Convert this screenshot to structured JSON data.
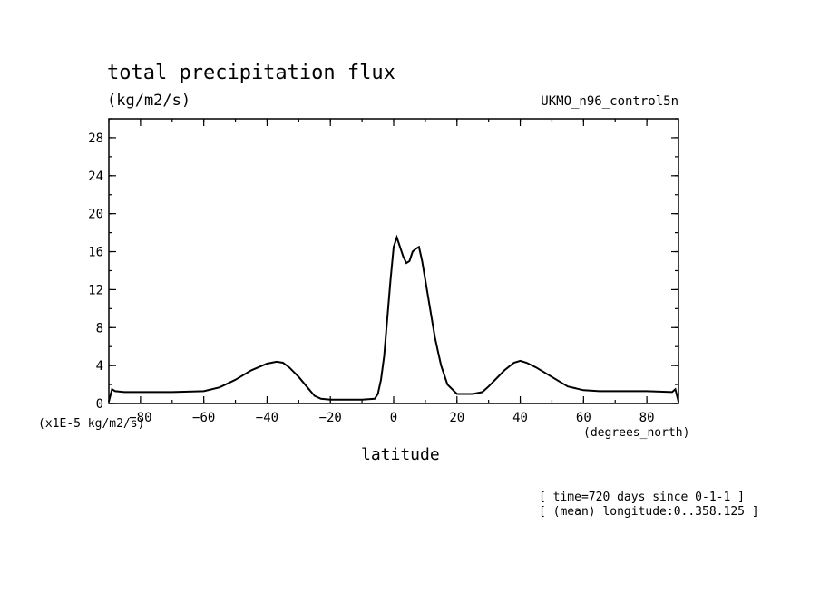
{
  "chart_data": {
    "type": "line",
    "title": "total precipitation flux",
    "units_label": "(kg/m2/s)",
    "dataset_label": "UKMO_n96_control5n",
    "xlabel": "latitude",
    "x_units_label": "(degrees_north)",
    "y_scale_label": "(x1E-5 kg/m2/s)",
    "annotations": [
      "[ time=720 days since 0-1-1 ]",
      "[ (mean) longitude:0..358.125 ]"
    ],
    "xlim": [
      -90,
      90
    ],
    "ylim": [
      0,
      30
    ],
    "xticks": [
      -80,
      -60,
      -40,
      -20,
      0,
      20,
      40,
      60,
      80
    ],
    "yticks": [
      0,
      4,
      8,
      12,
      16,
      20,
      24,
      28
    ],
    "grid": false,
    "series": [
      {
        "x": [
          -90,
          -89,
          -88,
          -85,
          -80,
          -70,
          -60,
          -55,
          -50,
          -45,
          -40,
          -37,
          -35,
          -33,
          -30,
          -27,
          -25,
          -23,
          -20,
          -15,
          -10,
          -6,
          -5,
          -4,
          -3,
          -2,
          -1,
          0,
          1,
          2,
          3,
          4,
          5,
          6,
          7,
          8,
          9,
          10,
          11,
          12,
          13,
          14,
          15,
          17,
          20,
          25,
          28,
          30,
          35,
          38,
          40,
          42,
          45,
          50,
          55,
          60,
          65,
          70,
          80,
          88,
          89,
          90
        ],
        "y": [
          0.2,
          1.5,
          1.3,
          1.2,
          1.2,
          1.2,
          1.3,
          1.7,
          2.5,
          3.5,
          4.2,
          4.4,
          4.3,
          3.8,
          2.8,
          1.6,
          0.8,
          0.5,
          0.4,
          0.4,
          0.4,
          0.5,
          1.0,
          2.5,
          5.0,
          9.0,
          13.0,
          16.5,
          17.5,
          16.5,
          15.5,
          14.8,
          15.0,
          16.0,
          16.3,
          16.5,
          15.0,
          13.0,
          11.0,
          9.0,
          7.0,
          5.5,
          4.0,
          2.0,
          1.0,
          1.0,
          1.2,
          1.8,
          3.5,
          4.3,
          4.5,
          4.3,
          3.8,
          2.8,
          1.8,
          1.4,
          1.3,
          1.3,
          1.3,
          1.2,
          1.5,
          0.2
        ]
      }
    ]
  }
}
